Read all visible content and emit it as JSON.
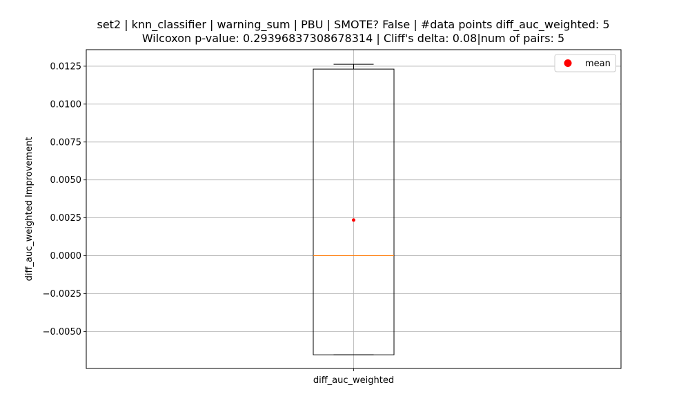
{
  "chart_data": {
    "type": "box",
    "title_lines": [
      "set2 | knn_classifier | warning_sum | PBU | SMOTE? False | #data points diff_auc_weighted: 5",
      "Wilcoxon p-value: 0.29396837308678314 | Cliff's delta: 0.08|num of pairs: 5"
    ],
    "xlabel": "",
    "ylabel": "diff_auc_weighted Improvement",
    "categories": [
      "diff_auc_weighted"
    ],
    "ylim": [
      -0.00744,
      0.01359
    ],
    "yticks": [
      -0.005,
      -0.0025,
      0.0,
      0.0025,
      0.005,
      0.0075,
      0.01,
      0.0125
    ],
    "ytick_labels": [
      "−0.0050",
      "−0.0025",
      "0.0000",
      "0.0025",
      "0.0050",
      "0.0075",
      "0.0100",
      "0.0125"
    ],
    "grid": true,
    "box": {
      "whisker_low": -0.00654,
      "q1": -0.00654,
      "median": 0.0,
      "q3": 0.01231,
      "whisker_high": 0.01263,
      "mean": 0.00235
    },
    "legend": {
      "label": "mean",
      "placement": "top-right"
    },
    "colors": {
      "median": "#ff7f0e",
      "mean": "#ff0000",
      "grid": "#b0b0b0",
      "box": "#000000"
    }
  }
}
